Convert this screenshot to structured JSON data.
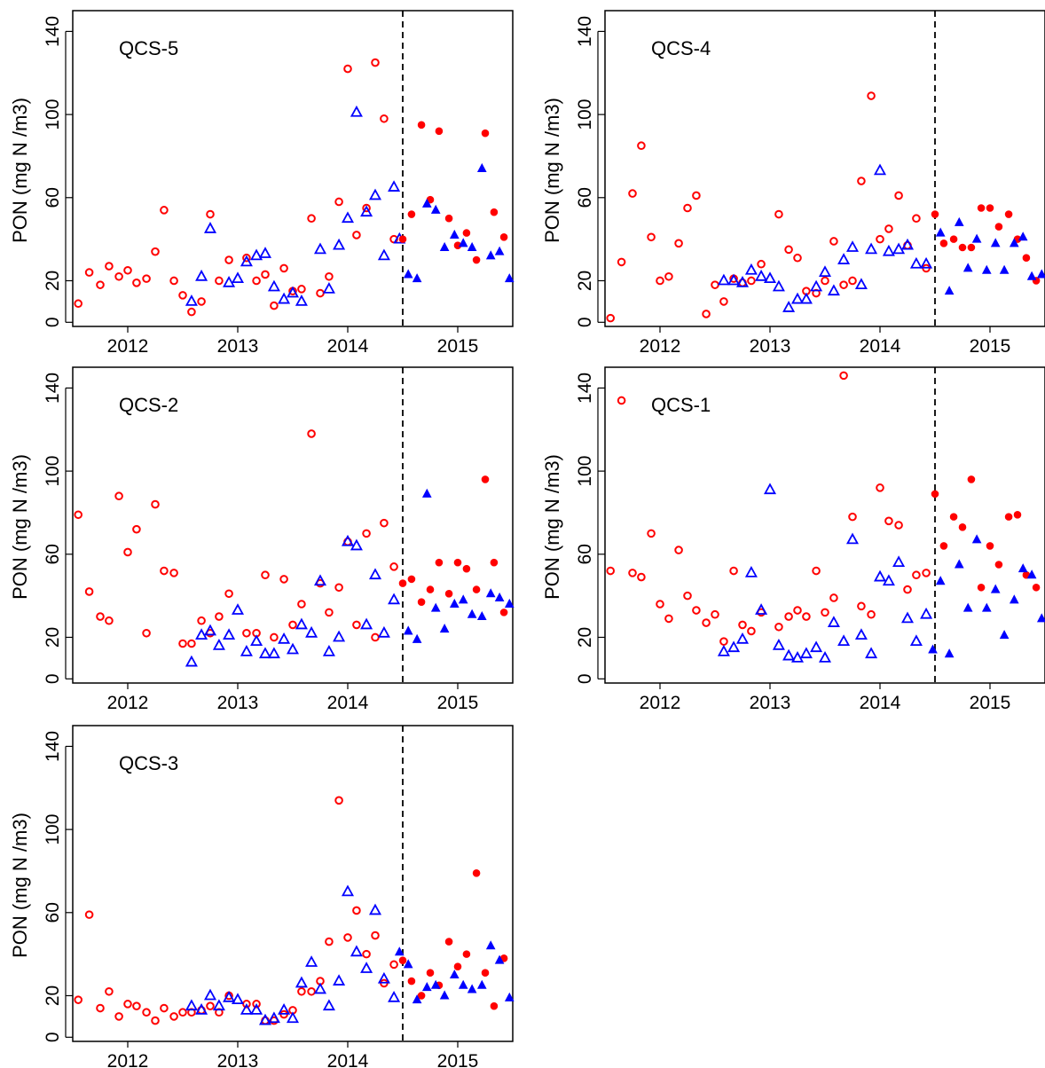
{
  "figure": {
    "ylabel": "PON (mg N /m3)",
    "x_ticks": [
      2012,
      2013,
      2014,
      2015
    ],
    "y_ticks": [
      0,
      20,
      60,
      100,
      140
    ],
    "xlim": [
      2011.5,
      2015.5
    ],
    "ylim": [
      -2,
      150
    ],
    "cutoff_year": 2014.5,
    "colors": {
      "red": "#ff0000",
      "blue": "#0000ff",
      "axes": "#000000"
    }
  },
  "chart_data": [
    {
      "type": "scatter",
      "title": "QCS-5",
      "series": [
        {
          "marker": "circle-open",
          "color": "#ff0000",
          "x": [
            2011.55,
            2011.65,
            2011.75,
            2011.83,
            2011.92,
            2012.0,
            2012.08,
            2012.17,
            2012.25,
            2012.33,
            2012.42,
            2012.5,
            2012.58,
            2012.67,
            2012.75,
            2012.83,
            2012.92,
            2013.08,
            2013.17,
            2013.25,
            2013.33,
            2013.42,
            2013.5,
            2013.58,
            2013.67,
            2013.75,
            2013.83,
            2013.92,
            2014.0,
            2014.08,
            2014.17,
            2014.25,
            2014.33,
            2014.42
          ],
          "y": [
            9,
            24,
            18,
            27,
            22,
            25,
            19,
            21,
            34,
            54,
            20,
            13,
            5,
            10,
            52,
            20,
            30,
            31,
            20,
            23,
            8,
            26,
            15,
            16,
            50,
            14,
            22,
            58,
            122,
            42,
            55,
            125,
            98,
            40
          ]
        },
        {
          "marker": "triangle-open",
          "color": "#0000ff",
          "x": [
            2012.58,
            2012.67,
            2012.75,
            2012.92,
            2013.0,
            2013.08,
            2013.17,
            2013.25,
            2013.33,
            2013.42,
            2013.5,
            2013.58,
            2013.75,
            2013.83,
            2013.92,
            2014.0,
            2014.08,
            2014.17,
            2014.25,
            2014.33,
            2014.42,
            2014.47
          ],
          "y": [
            10,
            22,
            45,
            19,
            21,
            29,
            32,
            33,
            17,
            11,
            14,
            10,
            35,
            16,
            37,
            50,
            101,
            53,
            61,
            32,
            65,
            40
          ]
        },
        {
          "marker": "circle-filled",
          "color": "#ff0000",
          "x": [
            2014.5,
            2014.58,
            2014.67,
            2014.75,
            2014.83,
            2014.92,
            2015.0,
            2015.08,
            2015.17,
            2015.25,
            2015.33,
            2015.42
          ],
          "y": [
            40,
            52,
            95,
            59,
            92,
            50,
            37,
            43,
            30,
            91,
            53,
            41
          ]
        },
        {
          "marker": "triangle-filled",
          "color": "#0000ff",
          "x": [
            2014.55,
            2014.63,
            2014.72,
            2014.8,
            2014.88,
            2014.97,
            2015.05,
            2015.13,
            2015.22,
            2015.3,
            2015.38,
            2015.47
          ],
          "y": [
            23,
            21,
            57,
            54,
            36,
            42,
            38,
            36,
            74,
            32,
            34,
            21
          ]
        }
      ]
    },
    {
      "type": "scatter",
      "title": "QCS-4",
      "series": [
        {
          "marker": "circle-open",
          "color": "#ff0000",
          "x": [
            2011.55,
            2011.65,
            2011.75,
            2011.83,
            2011.92,
            2012.0,
            2012.08,
            2012.17,
            2012.25,
            2012.33,
            2012.42,
            2012.5,
            2012.58,
            2012.67,
            2012.75,
            2012.83,
            2012.92,
            2013.08,
            2013.17,
            2013.25,
            2013.33,
            2013.42,
            2013.5,
            2013.58,
            2013.67,
            2013.75,
            2013.83,
            2013.92,
            2014.0,
            2014.08,
            2014.17,
            2014.25,
            2014.33,
            2014.42
          ],
          "y": [
            2,
            29,
            62,
            85,
            41,
            20,
            22,
            38,
            55,
            61,
            4,
            18,
            10,
            21,
            19,
            20,
            28,
            52,
            35,
            31,
            15,
            14,
            20,
            39,
            18,
            20,
            68,
            109,
            40,
            45,
            61,
            37,
            50,
            26
          ]
        },
        {
          "marker": "triangle-open",
          "color": "#0000ff",
          "x": [
            2012.58,
            2012.67,
            2012.75,
            2012.83,
            2012.92,
            2013.0,
            2013.08,
            2013.17,
            2013.25,
            2013.33,
            2013.42,
            2013.5,
            2013.58,
            2013.67,
            2013.75,
            2013.83,
            2013.92,
            2014.0,
            2014.08,
            2014.17,
            2014.25,
            2014.33,
            2014.42
          ],
          "y": [
            20,
            20,
            19,
            25,
            22,
            21,
            17,
            7,
            11,
            11,
            17,
            24,
            15,
            30,
            36,
            18,
            35,
            73,
            34,
            35,
            37,
            28,
            28
          ]
        },
        {
          "marker": "circle-filled",
          "color": "#ff0000",
          "x": [
            2014.5,
            2014.58,
            2014.67,
            2014.75,
            2014.83,
            2014.92,
            2015.0,
            2015.08,
            2015.17,
            2015.25,
            2015.33,
            2015.42
          ],
          "y": [
            52,
            38,
            40,
            36,
            36,
            55,
            55,
            46,
            52,
            40,
            31,
            20
          ]
        },
        {
          "marker": "triangle-filled",
          "color": "#0000ff",
          "x": [
            2014.55,
            2014.63,
            2014.72,
            2014.8,
            2014.88,
            2014.97,
            2015.05,
            2015.13,
            2015.22,
            2015.3,
            2015.38,
            2015.47
          ],
          "y": [
            43,
            15,
            48,
            26,
            40,
            25,
            38,
            25,
            38,
            41,
            22,
            23
          ]
        }
      ]
    },
    {
      "type": "scatter",
      "title": "QCS-2",
      "series": [
        {
          "marker": "circle-open",
          "color": "#ff0000",
          "x": [
            2011.55,
            2011.65,
            2011.75,
            2011.83,
            2011.92,
            2012.0,
            2012.08,
            2012.17,
            2012.25,
            2012.33,
            2012.42,
            2012.5,
            2012.58,
            2012.67,
            2012.75,
            2012.83,
            2012.92,
            2013.08,
            2013.17,
            2013.25,
            2013.33,
            2013.42,
            2013.5,
            2013.58,
            2013.67,
            2013.75,
            2013.83,
            2013.92,
            2014.0,
            2014.08,
            2014.17,
            2014.25,
            2014.33,
            2014.42
          ],
          "y": [
            79,
            42,
            30,
            28,
            88,
            61,
            72,
            22,
            84,
            52,
            51,
            17,
            17,
            28,
            22,
            30,
            41,
            22,
            22,
            50,
            20,
            48,
            26,
            36,
            118,
            46,
            32,
            44,
            66,
            26,
            70,
            20,
            75,
            54
          ]
        },
        {
          "marker": "triangle-open",
          "color": "#0000ff",
          "x": [
            2012.58,
            2012.67,
            2012.75,
            2012.83,
            2012.92,
            2013.0,
            2013.08,
            2013.17,
            2013.25,
            2013.33,
            2013.42,
            2013.5,
            2013.58,
            2013.67,
            2013.75,
            2013.83,
            2013.92,
            2014.0,
            2014.08,
            2014.17,
            2014.25,
            2014.33,
            2014.42
          ],
          "y": [
            8,
            21,
            23,
            16,
            21,
            33,
            13,
            18,
            12,
            12,
            19,
            14,
            26,
            22,
            47,
            13,
            20,
            66,
            64,
            26,
            50,
            22,
            38
          ]
        },
        {
          "marker": "circle-filled",
          "color": "#ff0000",
          "x": [
            2014.5,
            2014.58,
            2014.67,
            2014.75,
            2014.83,
            2014.92,
            2015.0,
            2015.08,
            2015.17,
            2015.25,
            2015.33,
            2015.42
          ],
          "y": [
            46,
            48,
            37,
            43,
            56,
            41,
            56,
            53,
            43,
            96,
            56,
            32
          ]
        },
        {
          "marker": "triangle-filled",
          "color": "#0000ff",
          "x": [
            2014.55,
            2014.63,
            2014.72,
            2014.8,
            2014.88,
            2014.97,
            2015.05,
            2015.13,
            2015.22,
            2015.3,
            2015.38,
            2015.47
          ],
          "y": [
            23,
            19,
            89,
            34,
            24,
            36,
            38,
            31,
            30,
            41,
            39,
            36
          ]
        }
      ]
    },
    {
      "type": "scatter",
      "title": "QCS-1",
      "series": [
        {
          "marker": "circle-open",
          "color": "#ff0000",
          "x": [
            2011.55,
            2011.65,
            2011.75,
            2011.83,
            2011.92,
            2012.0,
            2012.08,
            2012.17,
            2012.25,
            2012.33,
            2012.42,
            2012.5,
            2012.58,
            2012.67,
            2012.75,
            2012.83,
            2012.92,
            2013.08,
            2013.17,
            2013.25,
            2013.33,
            2013.42,
            2013.5,
            2013.58,
            2013.67,
            2013.75,
            2013.83,
            2013.92,
            2014.0,
            2014.08,
            2014.17,
            2014.25,
            2014.33,
            2014.42
          ],
          "y": [
            52,
            134,
            51,
            49,
            70,
            36,
            29,
            62,
            40,
            33,
            27,
            31,
            18,
            52,
            26,
            23,
            32,
            25,
            30,
            33,
            30,
            52,
            32,
            39,
            146,
            78,
            35,
            31,
            92,
            76,
            74,
            43,
            50,
            51
          ]
        },
        {
          "marker": "triangle-open",
          "color": "#0000ff",
          "x": [
            2012.58,
            2012.67,
            2012.75,
            2012.83,
            2012.92,
            2013.0,
            2013.08,
            2013.17,
            2013.25,
            2013.33,
            2013.42,
            2013.5,
            2013.58,
            2013.67,
            2013.75,
            2013.83,
            2013.92,
            2014.0,
            2014.08,
            2014.17,
            2014.25,
            2014.33,
            2014.42
          ],
          "y": [
            13,
            15,
            19,
            51,
            33,
            91,
            16,
            11,
            10,
            12,
            15,
            10,
            27,
            18,
            67,
            21,
            12,
            49,
            47,
            56,
            29,
            18,
            31
          ]
        },
        {
          "marker": "circle-filled",
          "color": "#ff0000",
          "x": [
            2014.5,
            2014.58,
            2014.67,
            2014.75,
            2014.83,
            2014.92,
            2015.0,
            2015.08,
            2015.17,
            2015.25,
            2015.33,
            2015.42
          ],
          "y": [
            89,
            64,
            78,
            73,
            96,
            44,
            64,
            55,
            78,
            79,
            50,
            44
          ]
        },
        {
          "marker": "triangle-filled",
          "color": "#0000ff",
          "x": [
            2014.48,
            2014.55,
            2014.63,
            2014.72,
            2014.8,
            2014.88,
            2014.97,
            2015.05,
            2015.13,
            2015.22,
            2015.3,
            2015.38,
            2015.47
          ],
          "y": [
            14,
            47,
            12,
            55,
            34,
            67,
            34,
            43,
            21,
            38,
            53,
            50,
            29
          ]
        }
      ]
    },
    {
      "type": "scatter",
      "title": "QCS-3",
      "series": [
        {
          "marker": "circle-open",
          "color": "#ff0000",
          "x": [
            2011.55,
            2011.65,
            2011.75,
            2011.83,
            2011.92,
            2012.0,
            2012.08,
            2012.17,
            2012.25,
            2012.33,
            2012.42,
            2012.5,
            2012.58,
            2012.67,
            2012.75,
            2012.83,
            2012.92,
            2013.08,
            2013.17,
            2013.25,
            2013.33,
            2013.42,
            2013.5,
            2013.58,
            2013.67,
            2013.75,
            2013.83,
            2013.92,
            2014.0,
            2014.08,
            2014.17,
            2014.25,
            2014.33,
            2014.42
          ],
          "y": [
            18,
            59,
            14,
            22,
            10,
            16,
            15,
            12,
            8,
            14,
            10,
            12,
            12,
            13,
            15,
            12,
            20,
            16,
            16,
            8,
            8,
            11,
            13,
            22,
            22,
            27,
            46,
            114,
            48,
            61,
            40,
            49,
            26,
            35
          ]
        },
        {
          "marker": "triangle-open",
          "color": "#0000ff",
          "x": [
            2012.58,
            2012.67,
            2012.75,
            2012.83,
            2012.92,
            2013.0,
            2013.08,
            2013.17,
            2013.25,
            2013.33,
            2013.42,
            2013.5,
            2013.58,
            2013.67,
            2013.75,
            2013.83,
            2013.92,
            2014.0,
            2014.08,
            2014.17,
            2014.25,
            2014.33,
            2014.42
          ],
          "y": [
            15,
            13,
            20,
            15,
            19,
            18,
            13,
            13,
            8,
            9,
            13,
            9,
            26,
            36,
            23,
            15,
            27,
            70,
            41,
            33,
            61,
            28,
            19
          ]
        },
        {
          "marker": "circle-filled",
          "color": "#ff0000",
          "x": [
            2014.5,
            2014.58,
            2014.67,
            2014.75,
            2014.83,
            2014.92,
            2015.0,
            2015.08,
            2015.17,
            2015.25,
            2015.33,
            2015.42
          ],
          "y": [
            37,
            27,
            20,
            31,
            25,
            46,
            34,
            40,
            79,
            31,
            15,
            38
          ]
        },
        {
          "marker": "triangle-filled",
          "color": "#0000ff",
          "x": [
            2014.47,
            2014.55,
            2014.63,
            2014.72,
            2014.8,
            2014.88,
            2014.97,
            2015.05,
            2015.13,
            2015.22,
            2015.3,
            2015.38,
            2015.47
          ],
          "y": [
            41,
            35,
            18,
            24,
            25,
            20,
            30,
            25,
            23,
            25,
            44,
            37,
            19
          ]
        }
      ]
    }
  ]
}
